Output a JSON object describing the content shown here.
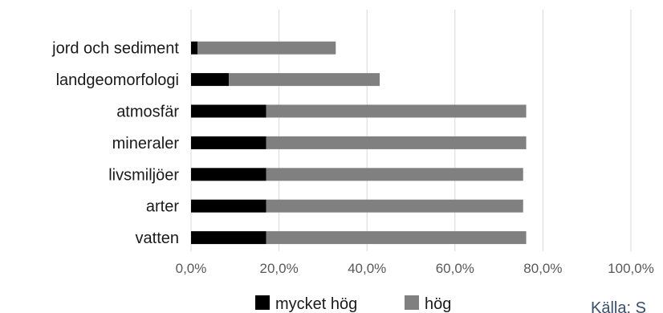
{
  "chart_data": {
    "type": "bar",
    "orientation": "horizontal",
    "stacked": true,
    "categories": [
      "jord och sediment",
      "landgeomorfologi",
      "atmosfär",
      "mineraler",
      "livsmiljöer",
      "arter",
      "vatten"
    ],
    "series": [
      {
        "name": "mycket hög",
        "color": "#000000",
        "values": [
          1.5,
          8.6,
          17.1,
          17.1,
          17.1,
          17.1,
          17.1
        ]
      },
      {
        "name": "hög",
        "color": "#808080",
        "values": [
          31.4,
          34.3,
          59.1,
          59.1,
          58.4,
          58.4,
          59.1
        ]
      }
    ],
    "xlim": [
      0,
      100
    ],
    "xticks": [
      "0,0%",
      "20,0%",
      "40,0%",
      "60,0%",
      "80,0%",
      "100,0%"
    ],
    "grid": true,
    "legend": "bottom"
  },
  "source_text": "Källa: S"
}
